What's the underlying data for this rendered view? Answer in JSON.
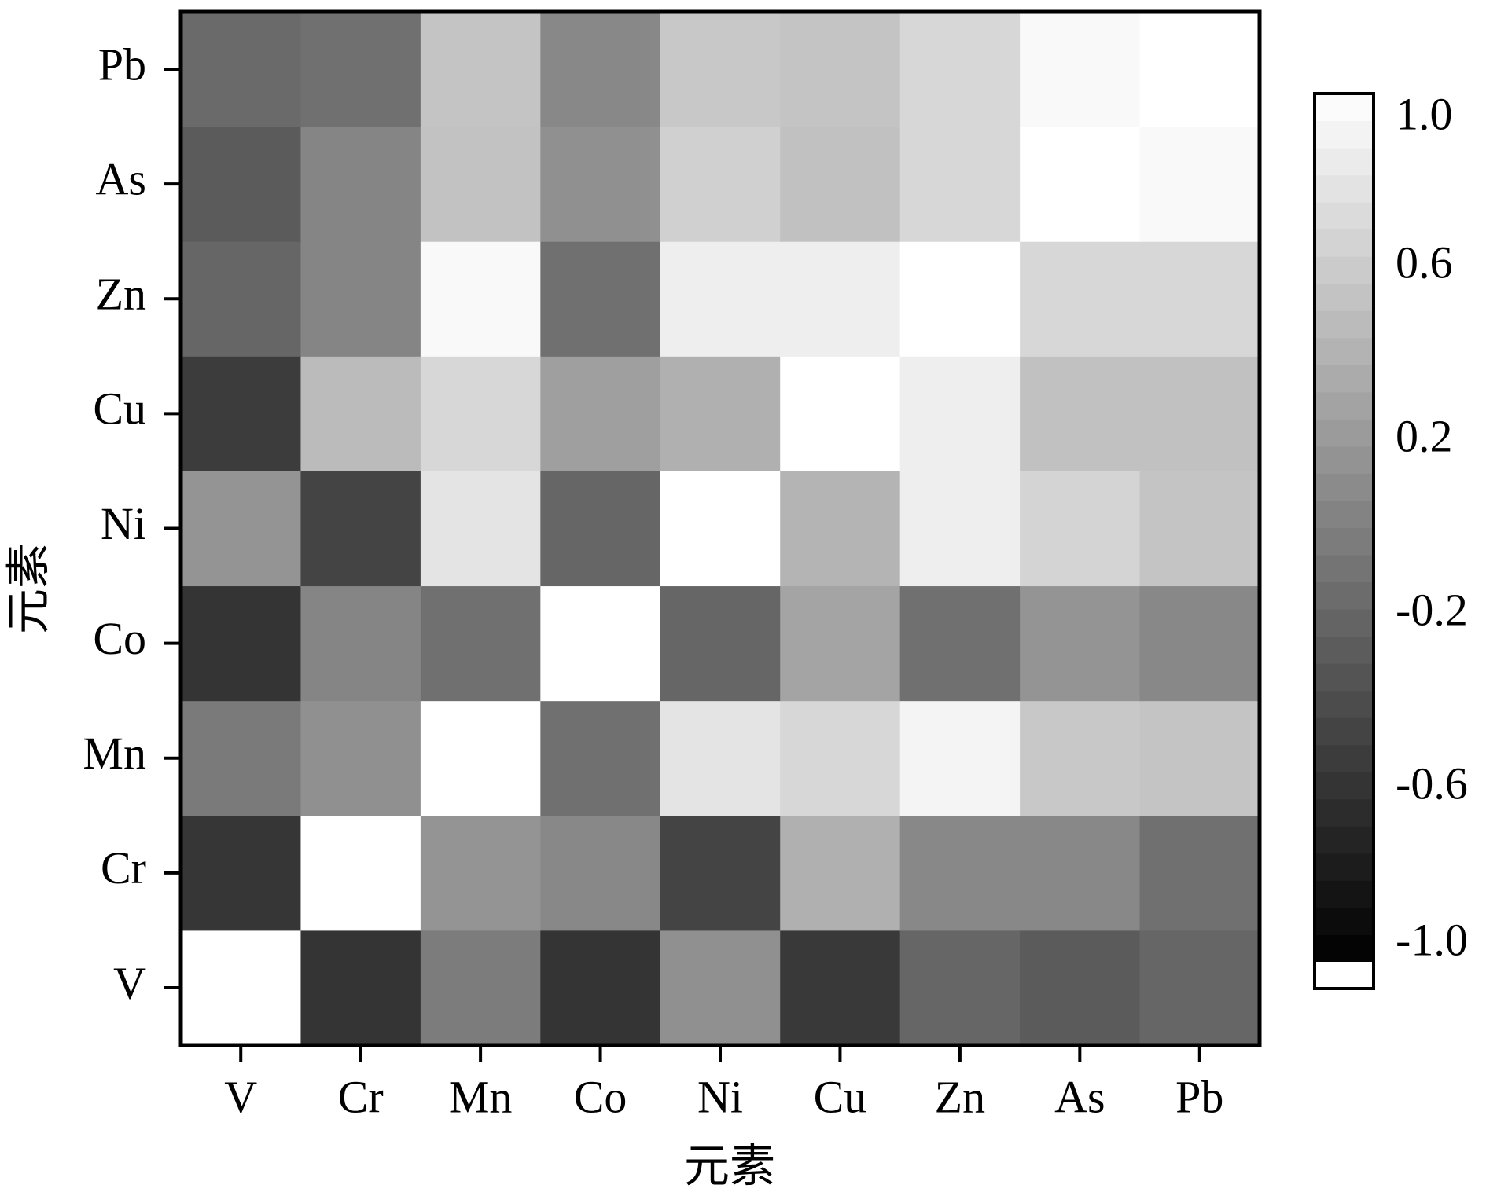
{
  "chart_data": {
    "type": "heatmap",
    "x_label": "元素",
    "y_label": "元素",
    "x_categories": [
      "V",
      "Cr",
      "Mn",
      "Co",
      "Ni",
      "Cu",
      "Zn",
      "As",
      "Pb"
    ],
    "y_categories": [
      "V",
      "Cr",
      "Mn",
      "Co",
      "Ni",
      "Cu",
      "Zn",
      "As",
      "Pb"
    ],
    "values": [
      [
        1.0,
        -0.59,
        -0.03,
        -0.59,
        0.13,
        -0.55,
        -0.2,
        -0.29,
        -0.2
      ],
      [
        -0.58,
        1.0,
        0.16,
        0.07,
        -0.47,
        0.38,
        0.07,
        0.07,
        -0.12
      ],
      [
        -0.04,
        0.13,
        1.0,
        -0.12,
        0.79,
        0.69,
        0.91,
        0.57,
        0.54
      ],
      [
        -0.59,
        0.04,
        -0.12,
        1.0,
        -0.2,
        0.29,
        -0.12,
        0.16,
        0.07
      ],
      [
        0.16,
        -0.47,
        0.79,
        -0.2,
        1.0,
        0.41,
        0.87,
        0.66,
        0.54
      ],
      [
        -0.53,
        0.47,
        0.69,
        0.25,
        0.38,
        1.0,
        0.87,
        0.51,
        0.51
      ],
      [
        -0.2,
        0.04,
        0.95,
        -0.12,
        0.87,
        0.87,
        1.0,
        0.69,
        0.69
      ],
      [
        -0.29,
        0.04,
        0.52,
        0.13,
        0.63,
        0.51,
        0.69,
        1.0,
        0.95
      ],
      [
        -0.17,
        -0.12,
        0.54,
        0.07,
        0.57,
        0.54,
        0.69,
        0.95,
        1.0
      ]
    ],
    "colormap": [
      "#000000",
      "#ffffff"
    ],
    "clim": [
      -1.0,
      1.0
    ],
    "cticks": [
      {
        "value": 1.0,
        "label": "1.0"
      },
      0.6,
      0.2,
      -0.2,
      -0.6,
      {
        "value": -1.0,
        "label": "-1.0"
      }
    ]
  }
}
